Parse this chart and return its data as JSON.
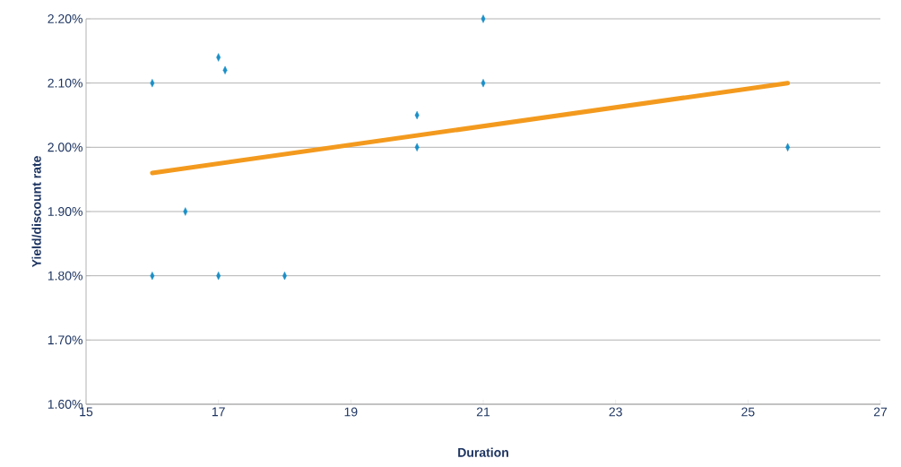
{
  "chart_data": {
    "type": "scatter",
    "xlabel": "Duration",
    "ylabel": "Yield/discount rate",
    "series": [
      {
        "color": "#1a8fc7",
        "marker": "diamond",
        "x": [
          16,
          16,
          16.5,
          17,
          17.1,
          17,
          18,
          20,
          20,
          21,
          21,
          25.6
        ],
        "values": [
          2.1,
          1.8,
          1.9,
          2.14,
          2.12,
          1.8,
          1.8,
          2.05,
          2.0,
          2.2,
          2.1,
          2.0
        ]
      },
      {
        "type": "line",
        "color": "#f39a1e",
        "marker": "none",
        "line_style": "solid",
        "x": [
          16,
          25.6
        ],
        "values": [
          1.96,
          2.1
        ]
      }
    ],
    "xlim": [
      15,
      27
    ],
    "xticks": [
      15,
      17,
      19,
      21,
      23,
      25,
      27
    ],
    "ylim": [
      1.6,
      2.2
    ],
    "yticks": [
      {
        "value": 1.6,
        "label": "1.60%"
      },
      {
        "value": 1.7,
        "label": "1.70%"
      },
      {
        "value": 1.8,
        "label": "1.80%"
      },
      {
        "value": 1.9,
        "label": "1.90%"
      },
      {
        "value": 2.0,
        "label": "2.00%"
      },
      {
        "value": 2.1,
        "label": "2.10%"
      },
      {
        "value": 2.2,
        "label": "2.20%"
      }
    ],
    "grid": "y"
  }
}
